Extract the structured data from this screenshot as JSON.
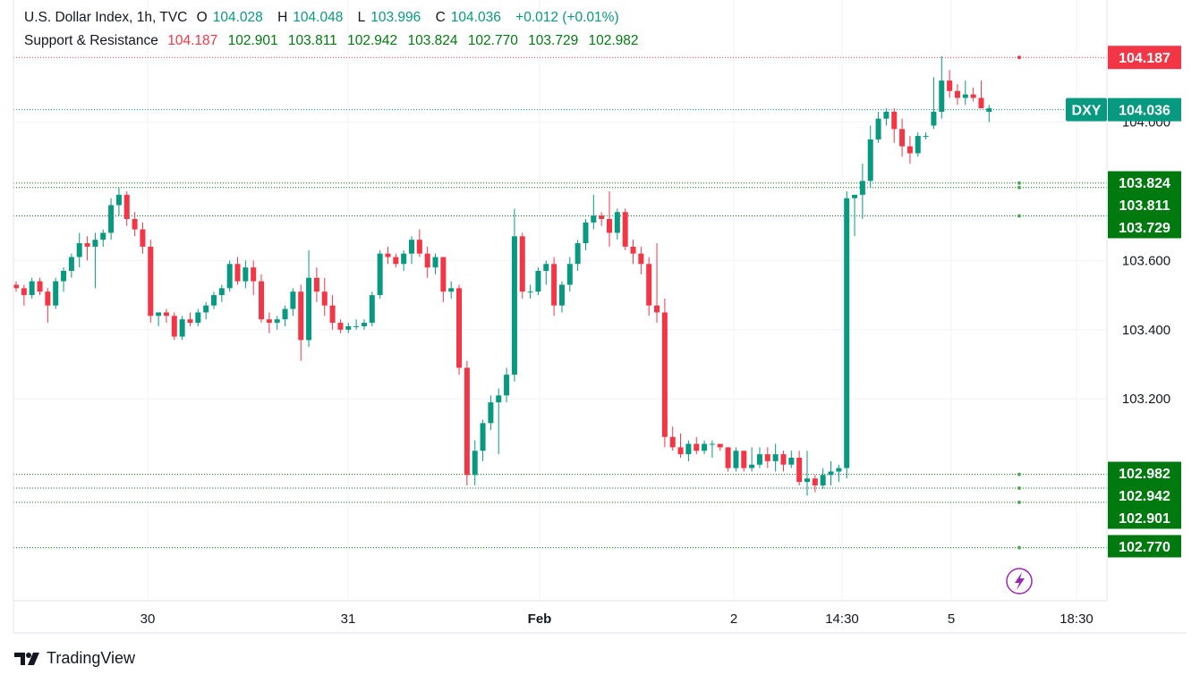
{
  "header": {
    "symbol_line": "U.S. Dollar Index, 1h, TVC",
    "open_label": "O",
    "open": "104.028",
    "high_label": "H",
    "high": "104.048",
    "low_label": "L",
    "low": "103.996",
    "close_label": "C",
    "close": "104.036",
    "change": "+0.012 (+0.01%)",
    "indicator_name": "Support & Resistance",
    "indicator_values": [
      "104.187",
      "102.901",
      "103.811",
      "102.942",
      "103.824",
      "102.770",
      "103.729",
      "102.982"
    ]
  },
  "colors": {
    "up": "#089981",
    "down": "#f23645",
    "resistance": "#f23645",
    "support": "#089981",
    "support_tag": "#007a0f",
    "grid": "#f0f3fa",
    "text": "#131722"
  },
  "footer": {
    "brand": "TradingView",
    "logo_icon": "tradingview-logo-icon"
  },
  "chart_data": {
    "type": "candlestick",
    "symbol": "DXY",
    "interval": "1h",
    "y_ticks": [
      "103.200",
      "103.400",
      "103.600",
      "104.000"
    ],
    "x_ticks": [
      "30",
      "31",
      "Feb",
      "2",
      "14:30",
      "5",
      "18:30"
    ],
    "last_price_label": "DXY",
    "last_price": "104.036",
    "resistance_levels": [
      "104.187"
    ],
    "support_levels": [
      "103.824",
      "103.811",
      "103.729",
      "102.982",
      "102.942",
      "102.901",
      "102.770"
    ],
    "ylim": [
      102.72,
      104.34
    ],
    "candles": [
      [
        103.53,
        103.54,
        103.51,
        103.52
      ],
      [
        103.52,
        103.53,
        103.47,
        103.5
      ],
      [
        103.5,
        103.55,
        103.49,
        103.54
      ],
      [
        103.54,
        103.55,
        103.5,
        103.51
      ],
      [
        103.51,
        103.52,
        103.42,
        103.47
      ],
      [
        103.47,
        103.55,
        103.46,
        103.54
      ],
      [
        103.54,
        103.58,
        103.51,
        103.57
      ],
      [
        103.57,
        103.62,
        103.55,
        103.61
      ],
      [
        103.61,
        103.68,
        103.58,
        103.65
      ],
      [
        103.65,
        103.67,
        103.6,
        103.64
      ],
      [
        103.64,
        103.68,
        103.52,
        103.66
      ],
      [
        103.66,
        103.69,
        103.64,
        103.68
      ],
      [
        103.68,
        103.78,
        103.66,
        103.76
      ],
      [
        103.76,
        103.81,
        103.73,
        103.79
      ],
      [
        103.79,
        103.8,
        103.7,
        103.72
      ],
      [
        103.72,
        103.74,
        103.67,
        103.69
      ],
      [
        103.69,
        103.71,
        103.62,
        103.64
      ],
      [
        103.64,
        103.66,
        103.42,
        103.44
      ],
      [
        103.44,
        103.45,
        103.41,
        103.45
      ],
      [
        103.45,
        103.46,
        103.42,
        103.44
      ],
      [
        103.44,
        103.45,
        103.37,
        103.38
      ],
      [
        103.38,
        103.44,
        103.37,
        103.43
      ],
      [
        103.43,
        103.45,
        103.41,
        103.42
      ],
      [
        103.42,
        103.46,
        103.41,
        103.45
      ],
      [
        103.45,
        103.48,
        103.43,
        103.47
      ],
      [
        103.47,
        103.51,
        103.46,
        103.5
      ],
      [
        103.5,
        103.53,
        103.48,
        103.52
      ],
      [
        103.52,
        103.6,
        103.51,
        103.59
      ],
      [
        103.59,
        103.61,
        103.53,
        103.54
      ],
      [
        103.54,
        103.6,
        103.52,
        103.58
      ],
      [
        103.58,
        103.6,
        103.5,
        103.54
      ],
      [
        103.54,
        103.56,
        103.42,
        103.43
      ],
      [
        103.43,
        103.45,
        103.39,
        103.42
      ],
      [
        103.42,
        103.44,
        103.4,
        103.43
      ],
      [
        103.43,
        103.47,
        103.41,
        103.46
      ],
      [
        103.46,
        103.52,
        103.44,
        103.51
      ],
      [
        103.51,
        103.53,
        103.31,
        103.37
      ],
      [
        103.37,
        103.63,
        103.35,
        103.55
      ],
      [
        103.55,
        103.58,
        103.48,
        103.51
      ],
      [
        103.51,
        103.55,
        103.44,
        103.47
      ],
      [
        103.47,
        103.5,
        103.4,
        103.42
      ],
      [
        103.42,
        103.43,
        103.39,
        103.4
      ],
      [
        103.4,
        103.42,
        103.39,
        103.41
      ],
      [
        103.41,
        103.43,
        103.4,
        103.41
      ],
      [
        103.41,
        103.43,
        103.4,
        103.42
      ],
      [
        103.42,
        103.51,
        103.41,
        103.5
      ],
      [
        103.5,
        103.63,
        103.49,
        103.62
      ],
      [
        103.62,
        103.64,
        103.59,
        103.61
      ],
      [
        103.61,
        103.62,
        103.58,
        103.59
      ],
      [
        103.59,
        103.63,
        103.57,
        103.62
      ],
      [
        103.62,
        103.67,
        103.59,
        103.66
      ],
      [
        103.66,
        103.69,
        103.61,
        103.62
      ],
      [
        103.62,
        103.64,
        103.55,
        103.58
      ],
      [
        103.58,
        103.62,
        103.56,
        103.61
      ],
      [
        103.61,
        103.61,
        103.48,
        103.51
      ],
      [
        103.51,
        103.54,
        103.49,
        103.52
      ],
      [
        103.52,
        103.53,
        103.27,
        103.29
      ],
      [
        103.29,
        103.31,
        102.95,
        102.98
      ],
      [
        102.98,
        103.08,
        102.95,
        103.05
      ],
      [
        103.05,
        103.14,
        103.02,
        103.13
      ],
      [
        103.13,
        103.21,
        103.11,
        103.19
      ],
      [
        103.19,
        103.23,
        103.04,
        103.21
      ],
      [
        103.21,
        103.29,
        103.19,
        103.27
      ],
      [
        103.27,
        103.75,
        103.25,
        103.67
      ],
      [
        103.67,
        103.68,
        103.49,
        103.51
      ],
      [
        103.51,
        103.53,
        103.49,
        103.51
      ],
      [
        103.51,
        103.58,
        103.5,
        103.57
      ],
      [
        103.57,
        103.6,
        103.53,
        103.59
      ],
      [
        103.59,
        103.61,
        103.44,
        103.47
      ],
      [
        103.47,
        103.54,
        103.45,
        103.53
      ],
      [
        103.53,
        103.61,
        103.51,
        103.59
      ],
      [
        103.59,
        103.66,
        103.57,
        103.65
      ],
      [
        103.65,
        103.72,
        103.63,
        103.71
      ],
      [
        103.71,
        103.79,
        103.69,
        103.73
      ],
      [
        103.73,
        103.74,
        103.7,
        103.72
      ],
      [
        103.72,
        103.8,
        103.64,
        103.68
      ],
      [
        103.68,
        103.75,
        103.66,
        103.74
      ],
      [
        103.74,
        103.75,
        103.63,
        103.64
      ],
      [
        103.64,
        103.66,
        103.59,
        103.62
      ],
      [
        103.62,
        103.64,
        103.56,
        103.59
      ],
      [
        103.59,
        103.61,
        103.44,
        103.47
      ],
      [
        103.47,
        103.65,
        103.42,
        103.45
      ],
      [
        103.45,
        103.49,
        103.06,
        103.09
      ],
      [
        103.09,
        103.12,
        103.05,
        103.06
      ],
      [
        103.06,
        103.1,
        103.03,
        103.04
      ],
      [
        103.04,
        103.08,
        103.02,
        103.07
      ],
      [
        103.07,
        103.09,
        103.04,
        103.05
      ],
      [
        103.05,
        103.08,
        103.04,
        103.07
      ],
      [
        103.07,
        103.08,
        103.03,
        103.07
      ],
      [
        103.07,
        103.07,
        103.05,
        103.06
      ],
      [
        103.06,
        103.06,
        102.99,
        103.0
      ],
      [
        103.0,
        103.06,
        102.99,
        103.05
      ],
      [
        103.05,
        103.05,
        102.99,
        103.0
      ],
      [
        103.0,
        103.06,
        102.99,
        103.01
      ],
      [
        103.01,
        103.06,
        103.0,
        103.04
      ],
      [
        103.04,
        103.06,
        103.0,
        103.02
      ],
      [
        103.02,
        103.07,
        102.99,
        103.04
      ],
      [
        103.04,
        103.05,
        102.99,
        103.01
      ],
      [
        103.01,
        103.05,
        103.0,
        103.03
      ],
      [
        103.03,
        103.05,
        102.95,
        102.96
      ],
      [
        102.96,
        103.05,
        102.92,
        102.97
      ],
      [
        102.97,
        102.98,
        102.93,
        102.95
      ],
      [
        102.95,
        103.0,
        102.94,
        102.98
      ],
      [
        102.98,
        103.02,
        102.95,
        102.99
      ],
      [
        102.99,
        103.01,
        102.96,
        103.0
      ],
      [
        103.0,
        103.8,
        102.97,
        103.78
      ],
      [
        103.78,
        103.79,
        103.67,
        103.79
      ],
      [
        103.79,
        103.88,
        103.72,
        103.83
      ],
      [
        103.83,
        103.99,
        103.81,
        103.95
      ],
      [
        103.95,
        104.03,
        103.94,
        104.01
      ],
      [
        104.01,
        104.04,
        103.99,
        104.03
      ],
      [
        104.03,
        104.04,
        103.94,
        103.98
      ],
      [
        103.98,
        104.01,
        103.9,
        103.93
      ],
      [
        103.93,
        103.96,
        103.88,
        103.91
      ],
      [
        103.91,
        103.97,
        103.9,
        103.96
      ],
      [
        103.96,
        103.97,
        103.95,
        103.96
      ],
      [
        103.99,
        104.13,
        103.98,
        104.03
      ],
      [
        104.03,
        104.19,
        104.01,
        104.12
      ],
      [
        104.12,
        104.15,
        104.07,
        104.09
      ],
      [
        104.09,
        104.11,
        104.05,
        104.07
      ],
      [
        104.07,
        104.12,
        104.05,
        104.08
      ],
      [
        104.08,
        104.1,
        104.06,
        104.07
      ],
      [
        104.07,
        104.12,
        104.04,
        104.04
      ],
      [
        104.03,
        104.05,
        104.0,
        104.04
      ]
    ]
  }
}
